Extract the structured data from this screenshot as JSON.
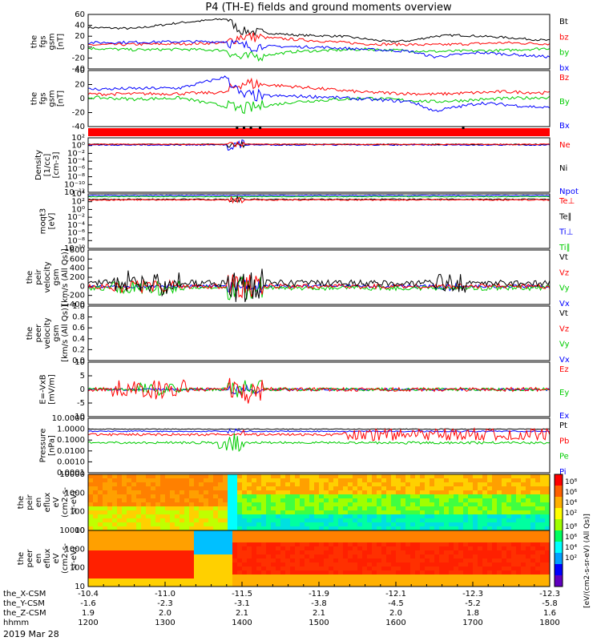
{
  "title": "P4 (TH-E) fields and ground moments overview",
  "date_label": "2019 Mar 28",
  "colors": {
    "black": "#000000",
    "red": "#ff0000",
    "green": "#00cc00",
    "blue": "#0000ff"
  },
  "chart_data": [
    {
      "type": "line",
      "panel": "fgs_gsm_full",
      "ylabel": [
        "the",
        "fgs",
        "gsm",
        "[nT]"
      ],
      "yticks": [
        "60",
        "40",
        "20",
        "0",
        "-20",
        "-40"
      ],
      "ylim": [
        -40,
        60
      ],
      "series": [
        {
          "name": "Bt",
          "color": "#000000",
          "points": [
            [
              0,
              36
            ],
            [
              0.1,
              34
            ],
            [
              0.2,
              45
            ],
            [
              0.3,
              52
            ],
            [
              0.33,
              30
            ],
            [
              0.45,
              22
            ],
            [
              0.55,
              20
            ],
            [
              0.65,
              10
            ],
            [
              0.7,
              12
            ],
            [
              0.75,
              20
            ],
            [
              0.8,
              22
            ],
            [
              0.9,
              18
            ],
            [
              1,
              12
            ]
          ]
        },
        {
          "name": "bz",
          "color": "#ff0000",
          "points": [
            [
              0,
              4
            ],
            [
              0.2,
              6
            ],
            [
              0.3,
              8
            ],
            [
              0.33,
              20
            ],
            [
              0.45,
              14
            ],
            [
              0.6,
              6
            ],
            [
              0.75,
              4
            ],
            [
              0.9,
              8
            ],
            [
              1,
              6
            ]
          ]
        },
        {
          "name": "by",
          "color": "#00cc00",
          "points": [
            [
              0,
              -2
            ],
            [
              0.1,
              -5
            ],
            [
              0.2,
              -4
            ],
            [
              0.3,
              -6
            ],
            [
              0.33,
              -20
            ],
            [
              0.45,
              -8
            ],
            [
              0.6,
              -4
            ],
            [
              0.75,
              -8
            ],
            [
              0.9,
              -6
            ],
            [
              1,
              -2
            ]
          ]
        },
        {
          "name": "bx",
          "color": "#0000ff",
          "points": [
            [
              0,
              8
            ],
            [
              0.2,
              10
            ],
            [
              0.3,
              10
            ],
            [
              0.33,
              2
            ],
            [
              0.5,
              0
            ],
            [
              0.7,
              -8
            ],
            [
              0.75,
              -18
            ],
            [
              0.85,
              -10
            ],
            [
              1,
              -18
            ]
          ]
        }
      ]
    },
    {
      "type": "line",
      "panel": "fgs_gsm_zoom",
      "ylabel": [
        "the",
        "fgs",
        "gsm",
        "[nT]"
      ],
      "yticks": [
        "40",
        "20",
        "0",
        "-20",
        "-40"
      ],
      "ylim": [
        -50,
        40
      ],
      "series": [
        {
          "name": "Bz",
          "color": "#ff0000",
          "points": [
            [
              0,
              2
            ],
            [
              0.2,
              3
            ],
            [
              0.3,
              5
            ],
            [
              0.33,
              20
            ],
            [
              0.45,
              14
            ],
            [
              0.6,
              5
            ],
            [
              0.75,
              2
            ],
            [
              0.9,
              6
            ],
            [
              1,
              4
            ]
          ]
        },
        {
          "name": "By",
          "color": "#00cc00",
          "points": [
            [
              0,
              -3
            ],
            [
              0.1,
              -6
            ],
            [
              0.2,
              -4
            ],
            [
              0.33,
              -22
            ],
            [
              0.45,
              -10
            ],
            [
              0.6,
              -4
            ],
            [
              0.75,
              -10
            ],
            [
              0.9,
              -5
            ],
            [
              1,
              -3
            ]
          ]
        },
        {
          "name": "Bx",
          "color": "#0000ff",
          "points": [
            [
              0,
              10
            ],
            [
              0.2,
              12
            ],
            [
              0.3,
              30
            ],
            [
              0.33,
              0
            ],
            [
              0.5,
              -2
            ],
            [
              0.7,
              -10
            ],
            [
              0.75,
              -25
            ],
            [
              0.85,
              -12
            ],
            [
              1,
              -20
            ]
          ]
        }
      ]
    },
    {
      "type": "line",
      "panel": "density",
      "ylabel": [
        "Density",
        "[1/cc]",
        "[cm-3]"
      ],
      "yticks": [
        "10²",
        "10⁰",
        "10⁻²",
        "10⁻⁴",
        "10⁻⁶",
        "10⁻⁸",
        "10⁻¹⁰",
        "10⁻¹²"
      ],
      "series": [
        {
          "name": "Ne",
          "color": "#ff0000"
        },
        {
          "name": "Ni",
          "color": "#000000"
        },
        {
          "name": "Npot",
          "color": "#0000ff"
        }
      ]
    },
    {
      "type": "line",
      "panel": "temperature",
      "ylabel": [
        "moqt3",
        "[eV]"
      ],
      "yticks": [
        "10⁴",
        "10²",
        "10⁰",
        "10⁻²",
        "10⁻⁴",
        "10⁻⁶",
        "10⁻⁸",
        "10⁻¹⁰"
      ],
      "series": [
        {
          "name": "Te⊥",
          "color": "#ff0000"
        },
        {
          "name": "Te∥",
          "color": "#000000"
        },
        {
          "name": "Ti⊥",
          "color": "#0000ff"
        },
        {
          "name": "Ti∥",
          "color": "#00cc00"
        }
      ]
    },
    {
      "type": "line",
      "panel": "peir_velocity",
      "ylabel": [
        "the",
        "peir",
        "velocity",
        "gsm",
        "[km/s (All Qs)]"
      ],
      "yticks": [
        "800",
        "600",
        "400",
        "200",
        "0",
        "-200",
        "-400"
      ],
      "ylim": [
        -400,
        800
      ],
      "series": [
        {
          "name": "Vt",
          "color": "#000000"
        },
        {
          "name": "Vz",
          "color": "#ff0000"
        },
        {
          "name": "Vy",
          "color": "#00cc00"
        },
        {
          "name": "Vx",
          "color": "#0000ff"
        }
      ]
    },
    {
      "type": "line",
      "panel": "peer_velocity",
      "ylabel": [
        "the",
        "peer",
        "velocity",
        "gsm",
        "[km/s (All Qs)]"
      ],
      "yticks": [
        "1.0",
        "0.8",
        "0.6",
        "0.4",
        "0.2",
        "0.0"
      ],
      "series": [
        {
          "name": "Vt",
          "color": "#000000"
        },
        {
          "name": "Vz",
          "color": "#ff0000"
        },
        {
          "name": "Vy",
          "color": "#00cc00"
        },
        {
          "name": "Vx",
          "color": "#0000ff"
        }
      ]
    },
    {
      "type": "line",
      "panel": "efield",
      "ylabel": [
        "E=-VxB",
        "[mV/m]"
      ],
      "yticks": [
        "10",
        "5",
        "0",
        "-5",
        "-10"
      ],
      "ylim": [
        -10,
        10
      ],
      "series": [
        {
          "name": "Ez",
          "color": "#ff0000"
        },
        {
          "name": "Ey",
          "color": "#00cc00"
        },
        {
          "name": "Ex",
          "color": "#0000ff"
        }
      ]
    },
    {
      "type": "line",
      "panel": "pressure",
      "ylabel": [
        "Pressure",
        "[nPa]"
      ],
      "yticks": [
        "10.0000",
        "1.0000",
        "0.1000",
        "0.0100",
        "0.0010",
        "0.0001"
      ],
      "series": [
        {
          "name": "Pt",
          "color": "#000000"
        },
        {
          "name": "Pb",
          "color": "#ff0000"
        },
        {
          "name": "Pe",
          "color": "#00cc00"
        },
        {
          "name": "Pi",
          "color": "#0000ff"
        }
      ]
    },
    {
      "type": "heatmap",
      "panel": "peir_spectrogram",
      "ylabel": [
        "the",
        "peir",
        "en",
        "eflux",
        "eV",
        "(cm2-s-",
        "sr-eV)"
      ],
      "yticks": [
        "10000",
        "1000",
        "100",
        "10"
      ]
    },
    {
      "type": "heatmap",
      "panel": "peer_spectrogram",
      "ylabel": [
        "the",
        "peer",
        "en",
        "eflux",
        "eV",
        "(cm2-s-",
        "sr-eV)"
      ],
      "yticks": [
        "10000",
        "1000",
        "100",
        "10"
      ],
      "colorbar": {
        "label": "[eV/(cm2-s-sr-eV) (All Qs)]",
        "ticks": [
          "10⁸",
          "10⁶",
          "10⁴",
          "10²"
        ]
      }
    }
  ],
  "axis_rows": [
    {
      "label": "the_X-CSM",
      "values": [
        "-10.4",
        "-11.0",
        "-11.5",
        "-11.9",
        "-12.1",
        "-12.3",
        "-12.3"
      ]
    },
    {
      "label": "the_Y-CSM",
      "values": [
        "-1.6",
        "-2.3",
        "-3.1",
        "-3.8",
        "-4.5",
        "-5.2",
        "-5.8"
      ]
    },
    {
      "label": "the_Z-CSM",
      "values": [
        "1.9",
        "2.0",
        "2.1",
        "2.1",
        "2.0",
        "1.8",
        "1.6"
      ]
    },
    {
      "label": "hhmm",
      "values": [
        "1200",
        "1300",
        "1400",
        "1500",
        "1600",
        "1700",
        "1800"
      ]
    }
  ],
  "bar_panel": {
    "color": "#ff0000"
  }
}
